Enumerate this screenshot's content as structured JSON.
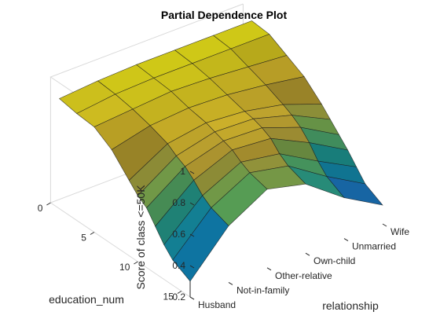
{
  "chart_data": {
    "type": "surface",
    "title": "Partial Dependence Plot",
    "xlabel": "relationship",
    "ylabel": "education_num",
    "zlabel": "Score of class <=50K",
    "relationship_categories": [
      "Husband",
      "Not-in-family",
      "Other-relative",
      "Own-child",
      "Unmarried",
      "Wife"
    ],
    "education_num_ticks": [
      0,
      5,
      10,
      15
    ],
    "z_ticks": [
      "0.2",
      "0.4",
      "0.6",
      "0.8",
      "1"
    ],
    "zlim": [
      0.2,
      1
    ],
    "education_num_values": [
      1,
      3,
      5,
      7,
      9,
      10,
      11,
      12,
      13,
      14,
      16
    ],
    "score": [
      [
        0.9,
        0.92,
        0.93,
        0.93,
        0.93,
        0.93
      ],
      [
        0.88,
        0.91,
        0.92,
        0.92,
        0.92,
        0.92
      ],
      [
        0.87,
        0.89,
        0.91,
        0.9,
        0.88,
        0.86
      ],
      [
        0.8,
        0.86,
        0.88,
        0.87,
        0.84,
        0.8
      ],
      [
        0.68,
        0.82,
        0.86,
        0.84,
        0.79,
        0.7
      ],
      [
        0.62,
        0.78,
        0.84,
        0.83,
        0.76,
        0.64
      ],
      [
        0.58,
        0.75,
        0.82,
        0.81,
        0.72,
        0.58
      ],
      [
        0.5,
        0.7,
        0.8,
        0.78,
        0.66,
        0.52
      ],
      [
        0.42,
        0.64,
        0.76,
        0.72,
        0.58,
        0.45
      ],
      [
        0.36,
        0.6,
        0.73,
        0.68,
        0.52,
        0.38
      ],
      [
        0.3,
        0.56,
        0.7,
        0.64,
        0.46,
        0.32
      ]
    ]
  }
}
